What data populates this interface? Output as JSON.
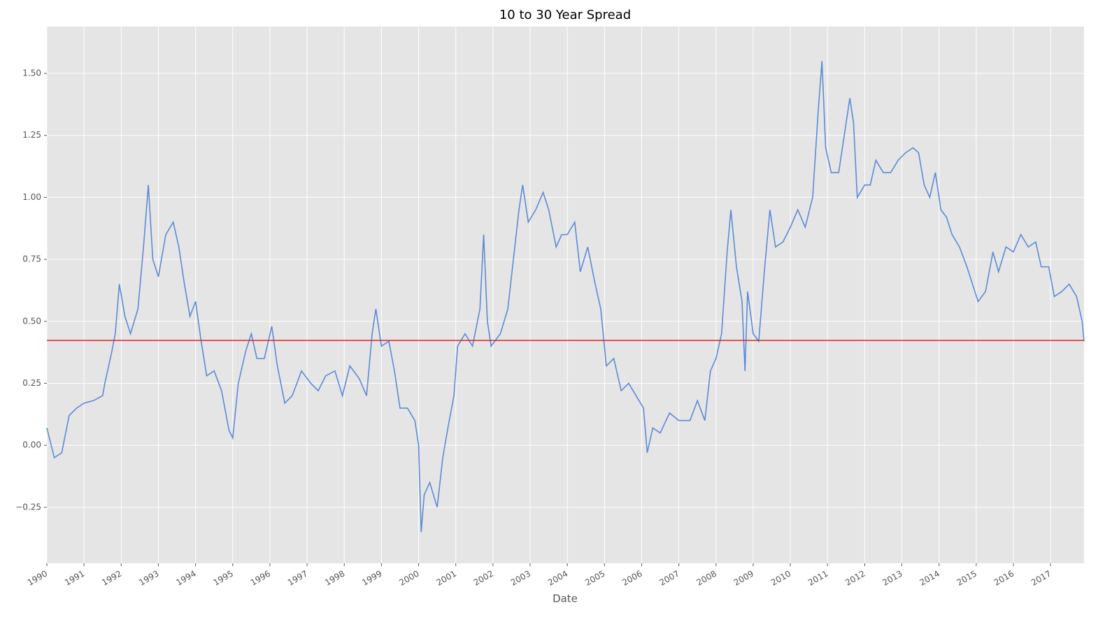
{
  "chart_data": {
    "type": "line",
    "title": "10 to 30 Year Spread",
    "x_label": "Date",
    "x": [
      1990.0,
      1990.2,
      1990.4,
      1990.6,
      1990.8,
      1991.0,
      1991.25,
      1991.5,
      1991.56,
      1991.75,
      1991.84,
      1991.95,
      1992.1,
      1992.25,
      1992.45,
      1992.6,
      1992.73,
      1992.85,
      1993.0,
      1993.2,
      1993.4,
      1993.55,
      1993.7,
      1993.85,
      1994.0,
      1994.15,
      1994.3,
      1994.5,
      1994.7,
      1994.9,
      1995.0,
      1995.15,
      1995.35,
      1995.5,
      1995.65,
      1995.85,
      1996.05,
      1996.2,
      1996.4,
      1996.6,
      1996.85,
      1997.1,
      1997.3,
      1997.5,
      1997.75,
      1997.95,
      1998.15,
      1998.4,
      1998.6,
      1998.75,
      1998.85,
      1999.0,
      1999.2,
      1999.35,
      1999.5,
      1999.7,
      1999.9,
      2000.0,
      2000.07,
      2000.15,
      2000.3,
      2000.5,
      2000.65,
      2000.8,
      2000.95,
      2001.05,
      2001.25,
      2001.45,
      2001.65,
      2001.75,
      2001.85,
      2001.95,
      2002.2,
      2002.4,
      2002.55,
      2002.7,
      2002.8,
      2002.95,
      2003.15,
      2003.35,
      2003.5,
      2003.7,
      2003.85,
      2004.0,
      2004.2,
      2004.35,
      2004.55,
      2004.75,
      2004.9,
      2005.05,
      2005.25,
      2005.45,
      2005.65,
      2005.85,
      2006.05,
      2006.15,
      2006.3,
      2006.5,
      2006.75,
      2007.0,
      2007.3,
      2007.5,
      2007.7,
      2007.85,
      2008.0,
      2008.15,
      2008.3,
      2008.4,
      2008.55,
      2008.7,
      2008.78,
      2008.85,
      2009.0,
      2009.15,
      2009.3,
      2009.45,
      2009.6,
      2009.8,
      2010.0,
      2010.2,
      2010.4,
      2010.6,
      2010.75,
      2010.85,
      2010.95,
      2011.1,
      2011.3,
      2011.45,
      2011.6,
      2011.7,
      2011.8,
      2012.0,
      2012.15,
      2012.3,
      2012.5,
      2012.7,
      2012.9,
      2013.1,
      2013.3,
      2013.45,
      2013.6,
      2013.75,
      2013.9,
      2014.05,
      2014.2,
      2014.35,
      2014.55,
      2014.75,
      2014.9,
      2015.05,
      2015.25,
      2015.45,
      2015.6,
      2015.8,
      2016.0,
      2016.2,
      2016.4,
      2016.6,
      2016.75,
      2016.95,
      2017.1,
      2017.3,
      2017.5,
      2017.7,
      2017.85,
      2017.9
    ],
    "series": [
      {
        "color": "#5b8bd6",
        "values": [
          0.07,
          -0.05,
          -0.03,
          0.12,
          0.15,
          0.17,
          0.18,
          0.2,
          0.25,
          0.38,
          0.45,
          0.65,
          0.52,
          0.45,
          0.55,
          0.8,
          1.05,
          0.75,
          0.68,
          0.85,
          0.9,
          0.8,
          0.65,
          0.52,
          0.58,
          0.42,
          0.28,
          0.3,
          0.22,
          0.06,
          0.03,
          0.25,
          0.38,
          0.45,
          0.35,
          0.35,
          0.48,
          0.32,
          0.17,
          0.2,
          0.3,
          0.25,
          0.22,
          0.28,
          0.3,
          0.2,
          0.32,
          0.27,
          0.2,
          0.45,
          0.55,
          0.4,
          0.42,
          0.3,
          0.15,
          0.15,
          0.1,
          0.0,
          -0.35,
          -0.2,
          -0.15,
          -0.25,
          -0.05,
          0.08,
          0.2,
          0.4,
          0.45,
          0.4,
          0.55,
          0.85,
          0.5,
          0.4,
          0.45,
          0.55,
          0.75,
          0.95,
          1.05,
          0.9,
          0.95,
          1.02,
          0.95,
          0.8,
          0.85,
          0.85,
          0.9,
          0.7,
          0.8,
          0.65,
          0.55,
          0.32,
          0.35,
          0.22,
          0.25,
          0.2,
          0.15,
          -0.03,
          0.07,
          0.05,
          0.13,
          0.1,
          0.1,
          0.18,
          0.1,
          0.3,
          0.35,
          0.45,
          0.78,
          0.95,
          0.72,
          0.58,
          0.3,
          0.62,
          0.45,
          0.42,
          0.7,
          0.95,
          0.8,
          0.82,
          0.88,
          0.95,
          0.88,
          1.0,
          1.35,
          1.55,
          1.2,
          1.1,
          1.1,
          1.25,
          1.4,
          1.3,
          1.0,
          1.05,
          1.05,
          1.15,
          1.1,
          1.1,
          1.15,
          1.18,
          1.2,
          1.18,
          1.05,
          1.0,
          1.1,
          0.95,
          0.92,
          0.85,
          0.8,
          0.72,
          0.65,
          0.58,
          0.62,
          0.78,
          0.7,
          0.8,
          0.78,
          0.85,
          0.8,
          0.82,
          0.72,
          0.72,
          0.6,
          0.62,
          0.65,
          0.6,
          0.5,
          0.42
        ]
      }
    ],
    "hline": {
      "value": 0.423,
      "color": "#d62728"
    },
    "xlim": [
      1990,
      2017.9
    ],
    "ylim": [
      -0.476,
      1.689
    ],
    "xticks": [
      1990,
      1991,
      1992,
      1993,
      1994,
      1995,
      1996,
      1997,
      1998,
      1999,
      2000,
      2001,
      2002,
      2003,
      2004,
      2005,
      2006,
      2007,
      2008,
      2009,
      2010,
      2011,
      2012,
      2013,
      2014,
      2015,
      2016,
      2017
    ],
    "yticks": [
      {
        "value": -0.25,
        "label": "−0.25"
      },
      {
        "value": 0,
        "label": "0.00"
      },
      {
        "value": 0.25,
        "label": "0.25"
      },
      {
        "value": 0.5,
        "label": "0.50"
      },
      {
        "value": 0.75,
        "label": "0.75"
      },
      {
        "value": 1,
        "label": "1.00"
      },
      {
        "value": 1.25,
        "label": "1.25"
      },
      {
        "value": 1.5,
        "label": "1.50"
      }
    ],
    "grid": true
  }
}
